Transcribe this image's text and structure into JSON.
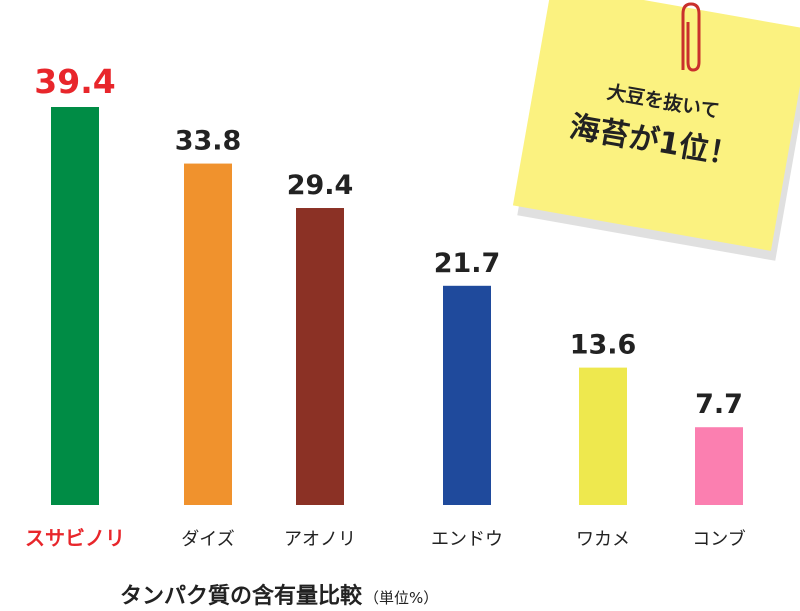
{
  "chart_data": {
    "type": "bar",
    "title": "タンパク質の含有量比較",
    "unit_label": "（単位%）",
    "categories": [
      "スサビノリ",
      "ダイズ",
      "アオノリ",
      "エンドウ",
      "ワカメ",
      "コンブ"
    ],
    "values": [
      39.4,
      33.8,
      29.4,
      21.7,
      13.6,
      7.7
    ],
    "colors": [
      "#008c45",
      "#f0922d",
      "#8b3125",
      "#1f4a9c",
      "#eee84e",
      "#fb7fb0"
    ],
    "highlight_color": "#e8262b",
    "annotation": {
      "lines": [
        "大豆を抜いて",
        "海苔が1位！"
      ]
    }
  }
}
